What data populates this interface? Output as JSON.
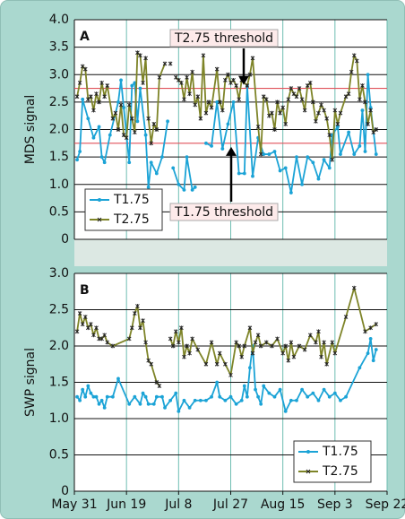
{
  "chart_data": [
    {
      "type": "line",
      "title": "A",
      "y_label": "MDS signal",
      "ylim": [
        0,
        4
      ],
      "yticks": [
        0,
        0.5,
        {
          "value": 1,
          "label": "1.0"
        },
        1.5,
        {
          "value": 2,
          "label": "2.0"
        },
        2.5,
        {
          "value": 3,
          "label": "3.0"
        },
        3.5,
        {
          "value": 4,
          "label": "4.0"
        }
      ],
      "xlim": [
        0,
        114
      ],
      "thresholds": [
        {
          "value": 2.75,
          "label": "T2.75 threshold"
        },
        {
          "value": 1.75,
          "label": "T1.75 threshold"
        }
      ],
      "threshold_color": "#e0525a",
      "legend": "lower left",
      "series": [
        {
          "name": "T1.75",
          "color": "#1ba3d6",
          "marker": "dot",
          "x": [
            1,
            2,
            3,
            5,
            7,
            9,
            10,
            11,
            13,
            16,
            17,
            18,
            20,
            21,
            22,
            23,
            24,
            26,
            27,
            28,
            30,
            32,
            34,
            35,
            36,
            38,
            40,
            41,
            43,
            44,
            46,
            48,
            50,
            52,
            54,
            56,
            58,
            60,
            62,
            63,
            65,
            67,
            69,
            71,
            73,
            75,
            77,
            79,
            81,
            83,
            85,
            87,
            89,
            91,
            93,
            94,
            96,
            97,
            100,
            102,
            104,
            105,
            106,
            107,
            108,
            110
          ],
          "values": [
            1.45,
            1.6,
            2.55,
            2.2,
            1.85,
            2.05,
            1.5,
            1.4,
            1.9,
            2.5,
            2.9,
            2.4,
            1.4,
            2.8,
            2.85,
            2.15,
            2.75,
            1.9,
            0.95,
            1.4,
            1.2,
            1.5,
            2.15,
            null,
            1.3,
            1.0,
            0.9,
            1.5,
            0.9,
            0.95,
            null,
            1.75,
            1.7,
            2.5,
            1.65,
            2.1,
            2.5,
            1.2,
            1.2,
            2.8,
            1.15,
            1.85,
            1.55,
            1.55,
            1.6,
            1.25,
            1.3,
            0.85,
            1.5,
            1.0,
            1.5,
            1.4,
            1.1,
            1.45,
            1.3,
            1.9,
            2.05,
            1.55,
            1.95,
            1.55,
            1.7,
            2.35,
            1.6,
            3.0,
            2.4,
            1.55
          ]
        },
        {
          "name": "T2.75",
          "color": "#7e8428",
          "marker": "x",
          "x": [
            1,
            2,
            3,
            4,
            5,
            6,
            7,
            8,
            9,
            10,
            11,
            12,
            14,
            15,
            16,
            17,
            18,
            19,
            20,
            21,
            22,
            23,
            24,
            25,
            26,
            27,
            28,
            29,
            30,
            31,
            33,
            34,
            35,
            36,
            37,
            38,
            39,
            40,
            41,
            42,
            43,
            44,
            45,
            46,
            47,
            48,
            49,
            50,
            52,
            53,
            54,
            55,
            56,
            57,
            58,
            59,
            60,
            61,
            63,
            64,
            65,
            67,
            68,
            69,
            70,
            71,
            72,
            73,
            74,
            75,
            76,
            77,
            78,
            79,
            80,
            81,
            82,
            83,
            84,
            85,
            86,
            87,
            88,
            89,
            90,
            91,
            92,
            93,
            94,
            95,
            96,
            97,
            99,
            100,
            101,
            102,
            103,
            104,
            105,
            106,
            107,
            108,
            109,
            110
          ],
          "values": [
            2.6,
            2.85,
            3.15,
            3.1,
            2.55,
            2.6,
            2.35,
            2.65,
            2.5,
            2.85,
            2.6,
            2.8,
            2.2,
            2.3,
            2.0,
            2.45,
            1.9,
            1.85,
            2.45,
            2.2,
            1.95,
            3.4,
            3.35,
            2.85,
            3.3,
            2.2,
            1.75,
            2.1,
            2.0,
            2.95,
            3.2,
            null,
            3.2,
            null,
            2.95,
            2.9,
            2.85,
            2.55,
            2.95,
            2.65,
            3.05,
            2.45,
            2.6,
            2.2,
            3.35,
            2.3,
            2.5,
            2.4,
            3.1,
            2.5,
            2.35,
            2.9,
            3.0,
            2.85,
            2.9,
            2.8,
            2.55,
            2.9,
            2.8,
            3.0,
            3.3,
            2.05,
            1.55,
            2.6,
            2.55,
            2.25,
            2.3,
            2.0,
            2.5,
            2.3,
            2.4,
            2.1,
            2.55,
            2.75,
            2.65,
            2.6,
            2.75,
            2.55,
            2.35,
            2.8,
            2.85,
            2.5,
            2.15,
            2.3,
            2.45,
            2.35,
            2.2,
            1.9,
            1.45,
            2.35,
            2.1,
            2.3,
            2.6,
            2.65,
            3.05,
            3.35,
            3.25,
            2.55,
            2.8,
            2.5,
            2.1,
            2.35,
            1.95,
            2.0
          ]
        }
      ]
    },
    {
      "type": "line",
      "title": "B",
      "y_label": "SWP signal",
      "ylim": [
        0,
        3
      ],
      "yticks": [
        0,
        0.5,
        {
          "value": 1,
          "label": "1.0"
        },
        1.5,
        {
          "value": 2,
          "label": "2.0"
        },
        2.5,
        {
          "value": 3,
          "label": "3.0"
        }
      ],
      "xlim": [
        0,
        114
      ],
      "xticks": [
        {
          "value": 0,
          "label": "May 31"
        },
        {
          "value": 19,
          "label": "Jun 19"
        },
        {
          "value": 38,
          "label": "Jul 8"
        },
        {
          "value": 57,
          "label": "Jul 27"
        },
        {
          "value": 76,
          "label": "Aug 15"
        },
        {
          "value": 95,
          "label": "Sep 3"
        },
        {
          "value": 114,
          "label": "Sep 22"
        }
      ],
      "legend": "lower right",
      "series": [
        {
          "name": "T1.75",
          "color": "#1ba3d6",
          "marker": "dot",
          "x": [
            1,
            2,
            3,
            4,
            5,
            6,
            7,
            8,
            9,
            10,
            11,
            12,
            14,
            16,
            20,
            22,
            24,
            25,
            26,
            27,
            29,
            30,
            32,
            33,
            35,
            37,
            38,
            40,
            42,
            44,
            46,
            48,
            50,
            52,
            53,
            55,
            57,
            59,
            61,
            62,
            63,
            64,
            65,
            66,
            67,
            68,
            69,
            71,
            73,
            75,
            77,
            79,
            81,
            83,
            85,
            87,
            89,
            91,
            93,
            95,
            97,
            99,
            104,
            107,
            108,
            109,
            110
          ],
          "values": [
            1.3,
            1.25,
            1.4,
            1.3,
            1.45,
            1.35,
            1.3,
            1.3,
            1.2,
            1.25,
            1.15,
            1.3,
            1.3,
            1.55,
            1.2,
            1.3,
            1.2,
            1.35,
            1.3,
            1.2,
            1.2,
            1.3,
            1.3,
            1.15,
            1.25,
            1.35,
            1.1,
            1.25,
            1.15,
            1.25,
            1.25,
            1.25,
            1.3,
            1.5,
            1.3,
            1.25,
            1.3,
            1.2,
            1.25,
            1.45,
            1.3,
            1.7,
            2.0,
            1.4,
            1.3,
            1.2,
            1.45,
            1.35,
            1.3,
            1.4,
            1.1,
            1.25,
            1.25,
            1.4,
            1.3,
            1.35,
            1.25,
            1.4,
            1.3,
            1.35,
            1.25,
            1.3,
            1.7,
            1.9,
            2.1,
            1.8,
            1.95
          ]
        },
        {
          "name": "T2.75",
          "color": "#7e8428",
          "marker": "x",
          "x": [
            1,
            2,
            3,
            4,
            5,
            6,
            7,
            8,
            9,
            10,
            11,
            12,
            14,
            20,
            21,
            22,
            23,
            24,
            25,
            26,
            27,
            28,
            30,
            31,
            32,
            35,
            36,
            37,
            38,
            39,
            40,
            41,
            42,
            43,
            45,
            48,
            50,
            52,
            53,
            55,
            57,
            59,
            60,
            61,
            62,
            64,
            65,
            66,
            67,
            68,
            70,
            72,
            74,
            76,
            77,
            78,
            79,
            80,
            82,
            84,
            86,
            88,
            89,
            90,
            91,
            92,
            94,
            95,
            99,
            102,
            106,
            108,
            110
          ],
          "values": [
            2.2,
            2.45,
            2.3,
            2.4,
            2.25,
            2.3,
            2.15,
            2.25,
            2.1,
            2.1,
            2.15,
            2.05,
            2.0,
            2.1,
            2.25,
            2.45,
            2.55,
            2.25,
            2.35,
            2.05,
            1.8,
            1.75,
            1.5,
            1.45,
            null,
            2.1,
            2.0,
            2.2,
            2.05,
            2.25,
            1.85,
            2.0,
            1.9,
            2.1,
            1.95,
            1.75,
            2.05,
            1.75,
            1.9,
            1.75,
            1.6,
            2.05,
            2.0,
            1.85,
            2.0,
            2.25,
            1.9,
            2.05,
            2.15,
            2.0,
            2.05,
            2.0,
            2.1,
            1.9,
            2.0,
            1.8,
            2.05,
            1.85,
            2.0,
            1.95,
            2.15,
            2.05,
            2.2,
            1.85,
            2.05,
            1.75,
            2.05,
            1.9,
            2.4,
            2.8,
            2.2,
            2.25,
            2.3
          ]
        }
      ]
    }
  ]
}
